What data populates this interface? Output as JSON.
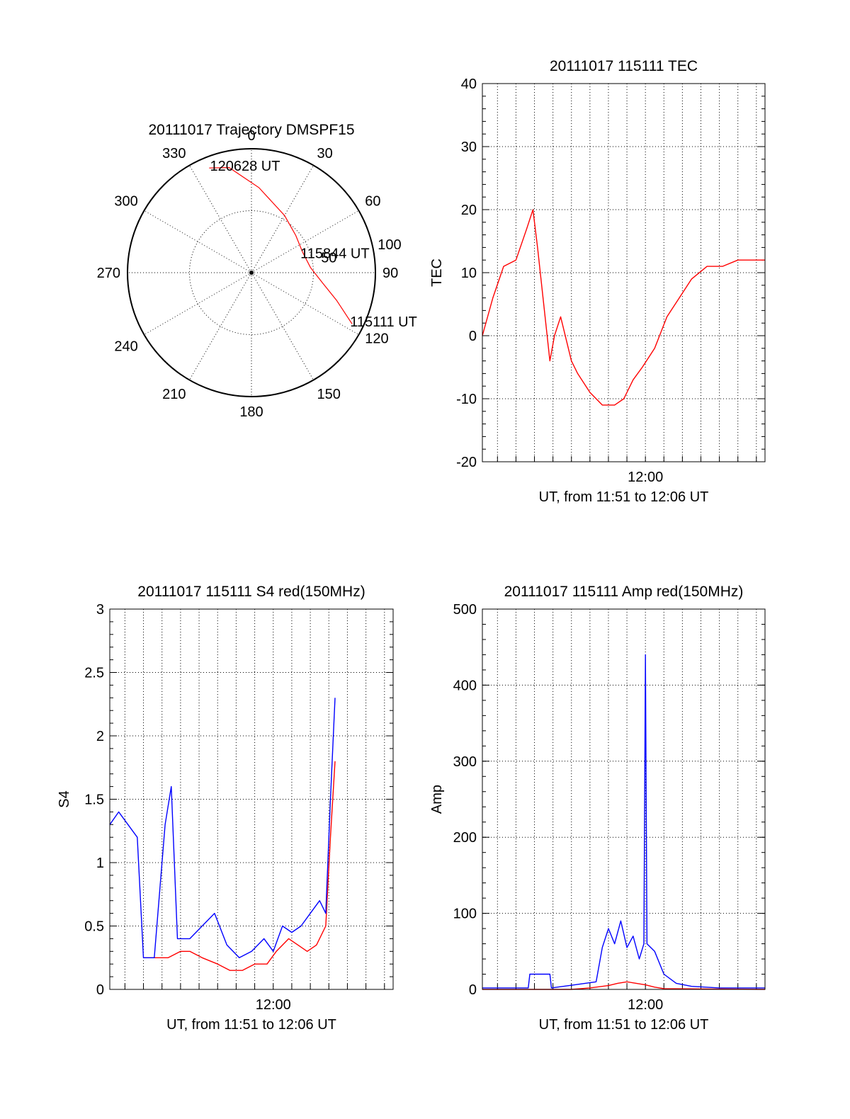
{
  "chart_data": [
    {
      "type": "polar",
      "title": "20111017 Trajectory DMSPF15",
      "azimuth_labels": [
        "0",
        "30",
        "60",
        "90",
        "120",
        "150",
        "180",
        "210",
        "240",
        "270",
        "300",
        "330"
      ],
      "radial_labels": [
        "50",
        "100"
      ],
      "series": [
        {
          "color": "#ff0000",
          "points": [
            {
              "az": 117,
              "el": 8
            },
            {
              "az": 108,
              "el": 25
            },
            {
              "az": 98,
              "el": 38
            },
            {
              "az": 85,
              "el": 47
            },
            {
              "az": 68,
              "el": 50
            },
            {
              "az": 50,
              "el": 48
            },
            {
              "az": 30,
              "el": 42
            },
            {
              "az": 5,
              "el": 28
            },
            {
              "az": -12,
              "el": 12
            },
            {
              "az": -22,
              "el": 8
            }
          ]
        }
      ],
      "annotations": [
        {
          "text": "120628 UT",
          "az": -20,
          "el": 8
        },
        {
          "text": "115844 UT",
          "az": 70,
          "el": 50
        },
        {
          "text": "115111 UT",
          "az": 116,
          "el": 8
        }
      ]
    },
    {
      "type": "line",
      "title": "20111017 115111 TEC",
      "xlabel": "UT, from 11:51 to 12:06 UT",
      "ylabel": "TEC",
      "x_range": [
        "11:51:11",
        "12:06:28"
      ],
      "x_ticks": [
        "12:00"
      ],
      "ylim": [
        -20,
        40
      ],
      "y_ticks": [
        -20,
        -10,
        0,
        10,
        20,
        30,
        40
      ],
      "grid": true,
      "series": [
        {
          "color": "#ff0000",
          "x": [
            "11:51:11",
            "11:51:45",
            "11:52:20",
            "11:53:00",
            "11:53:35",
            "11:53:55",
            "11:54:10",
            "11:54:30",
            "11:54:50",
            "11:55:05",
            "11:55:25",
            "11:55:45",
            "11:56:00",
            "11:56:20",
            "11:57:00",
            "11:57:40",
            "11:58:20",
            "11:58:50",
            "11:59:20",
            "11:59:50",
            "12:00:30",
            "12:01:10",
            "12:01:50",
            "12:02:30",
            "12:03:20",
            "12:04:10",
            "12:05:00",
            "12:05:40",
            "12:06:28"
          ],
          "values": [
            0,
            6,
            11,
            12,
            17,
            20,
            14,
            5,
            -4,
            0,
            3,
            -1,
            -4,
            -6,
            -9,
            -11,
            -11,
            -10,
            -7,
            -5,
            -2,
            3,
            6,
            9,
            11,
            11,
            12,
            12,
            12
          ]
        }
      ]
    },
    {
      "type": "line",
      "title": "20111017 115111 S4 red(150MHz)",
      "xlabel": "UT, from 11:51 to 12:06 UT",
      "ylabel": "S4",
      "x_range": [
        "11:51:11",
        "12:06:28"
      ],
      "x_ticks": [
        "12:00"
      ],
      "ylim": [
        0,
        3
      ],
      "y_ticks": [
        0,
        0.5,
        1,
        1.5,
        2,
        2.5,
        3
      ],
      "grid": true,
      "series": [
        {
          "color": "#ff0000",
          "x": [
            "11:53:00",
            "11:53:35",
            "11:54:20",
            "11:55:00",
            "11:55:30",
            "11:56:10",
            "11:57:00",
            "11:57:40",
            "11:58:20",
            "11:59:00",
            "11:59:40",
            "12:00:10",
            "12:00:50",
            "12:01:20",
            "12:01:50",
            "12:02:20",
            "12:02:50",
            "12:03:05",
            "12:03:20"
          ],
          "values": [
            0.25,
            0.25,
            0.25,
            0.3,
            0.3,
            0.25,
            0.2,
            0.15,
            0.15,
            0.2,
            0.2,
            0.3,
            0.4,
            0.35,
            0.3,
            0.35,
            0.5,
            1.2,
            1.8
          ]
        },
        {
          "color": "#0000ff",
          "x": [
            "11:51:11",
            "11:51:40",
            "11:52:10",
            "11:52:40",
            "11:53:00",
            "11:53:35",
            "11:54:10",
            "11:54:30",
            "11:54:50",
            "11:55:30",
            "11:56:10",
            "11:56:50",
            "11:57:30",
            "11:58:10",
            "11:58:50",
            "11:59:30",
            "12:00:00",
            "12:00:30",
            "12:01:00",
            "12:01:30",
            "12:02:00",
            "12:02:30",
            "12:02:50",
            "12:03:05",
            "12:03:20"
          ],
          "values": [
            1.3,
            1.4,
            1.3,
            1.2,
            0.25,
            0.25,
            1.3,
            1.6,
            0.4,
            0.4,
            0.5,
            0.6,
            0.35,
            0.25,
            0.3,
            0.4,
            0.3,
            0.5,
            0.45,
            0.5,
            0.6,
            0.7,
            0.6,
            1.5,
            2.3
          ]
        }
      ]
    },
    {
      "type": "line",
      "title": "20111017 115111 Amp red(150MHz)",
      "xlabel": "UT, from 11:51 to 12:06 UT",
      "ylabel": "Amp",
      "x_range": [
        "11:51:11",
        "12:06:28"
      ],
      "x_ticks": [
        "12:00"
      ],
      "ylim": [
        0,
        500
      ],
      "y_ticks": [
        0,
        100,
        200,
        300,
        400,
        500
      ],
      "grid": true,
      "series": [
        {
          "color": "#0000ff",
          "x": [
            "11:51:11",
            "11:53:40",
            "11:53:45",
            "11:54:50",
            "11:54:55",
            "11:56:10",
            "11:57:20",
            "11:57:40",
            "11:58:00",
            "11:58:20",
            "11:58:40",
            "11:59:00",
            "11:59:20",
            "11:59:40",
            "11:59:55",
            "12:00:00",
            "12:00:05",
            "12:00:30",
            "12:01:00",
            "12:01:40",
            "12:02:30",
            "12:04:00",
            "12:06:28"
          ],
          "values": [
            2,
            2,
            20,
            20,
            2,
            6,
            10,
            55,
            80,
            60,
            90,
            55,
            70,
            40,
            60,
            440,
            60,
            50,
            20,
            8,
            4,
            2,
            2
          ]
        },
        {
          "color": "#ff0000",
          "x": [
            "11:51:11",
            "11:56:00",
            "11:57:00",
            "11:58:00",
            "11:58:30",
            "11:59:00",
            "11:59:30",
            "12:00:00",
            "12:00:30",
            "12:01:00",
            "12:06:28"
          ],
          "values": [
            0,
            0,
            2,
            5,
            8,
            10,
            8,
            6,
            3,
            1,
            0
          ]
        }
      ]
    }
  ]
}
